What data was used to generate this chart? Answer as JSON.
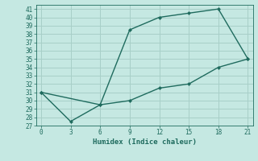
{
  "xlabel": "Humidex (Indice chaleur)",
  "line1_x": [
    0,
    3,
    6,
    9,
    12,
    15,
    18,
    21
  ],
  "line1_y": [
    31,
    27.5,
    29.5,
    38.5,
    40,
    40.5,
    41,
    35
  ],
  "line2_x": [
    0,
    6,
    9,
    12,
    15,
    18,
    21
  ],
  "line2_y": [
    31,
    29.5,
    30,
    31.5,
    32,
    34,
    35
  ],
  "line_color": "#1f6b5e",
  "bg_color": "#c5e8e2",
  "grid_color": "#a8cfc8",
  "xlim": [
    -0.5,
    21.5
  ],
  "ylim": [
    27,
    41.5
  ],
  "xticks": [
    0,
    3,
    6,
    9,
    12,
    15,
    18,
    21
  ],
  "yticks": [
    27,
    28,
    29,
    30,
    31,
    32,
    33,
    34,
    35,
    36,
    37,
    38,
    39,
    40,
    41
  ]
}
